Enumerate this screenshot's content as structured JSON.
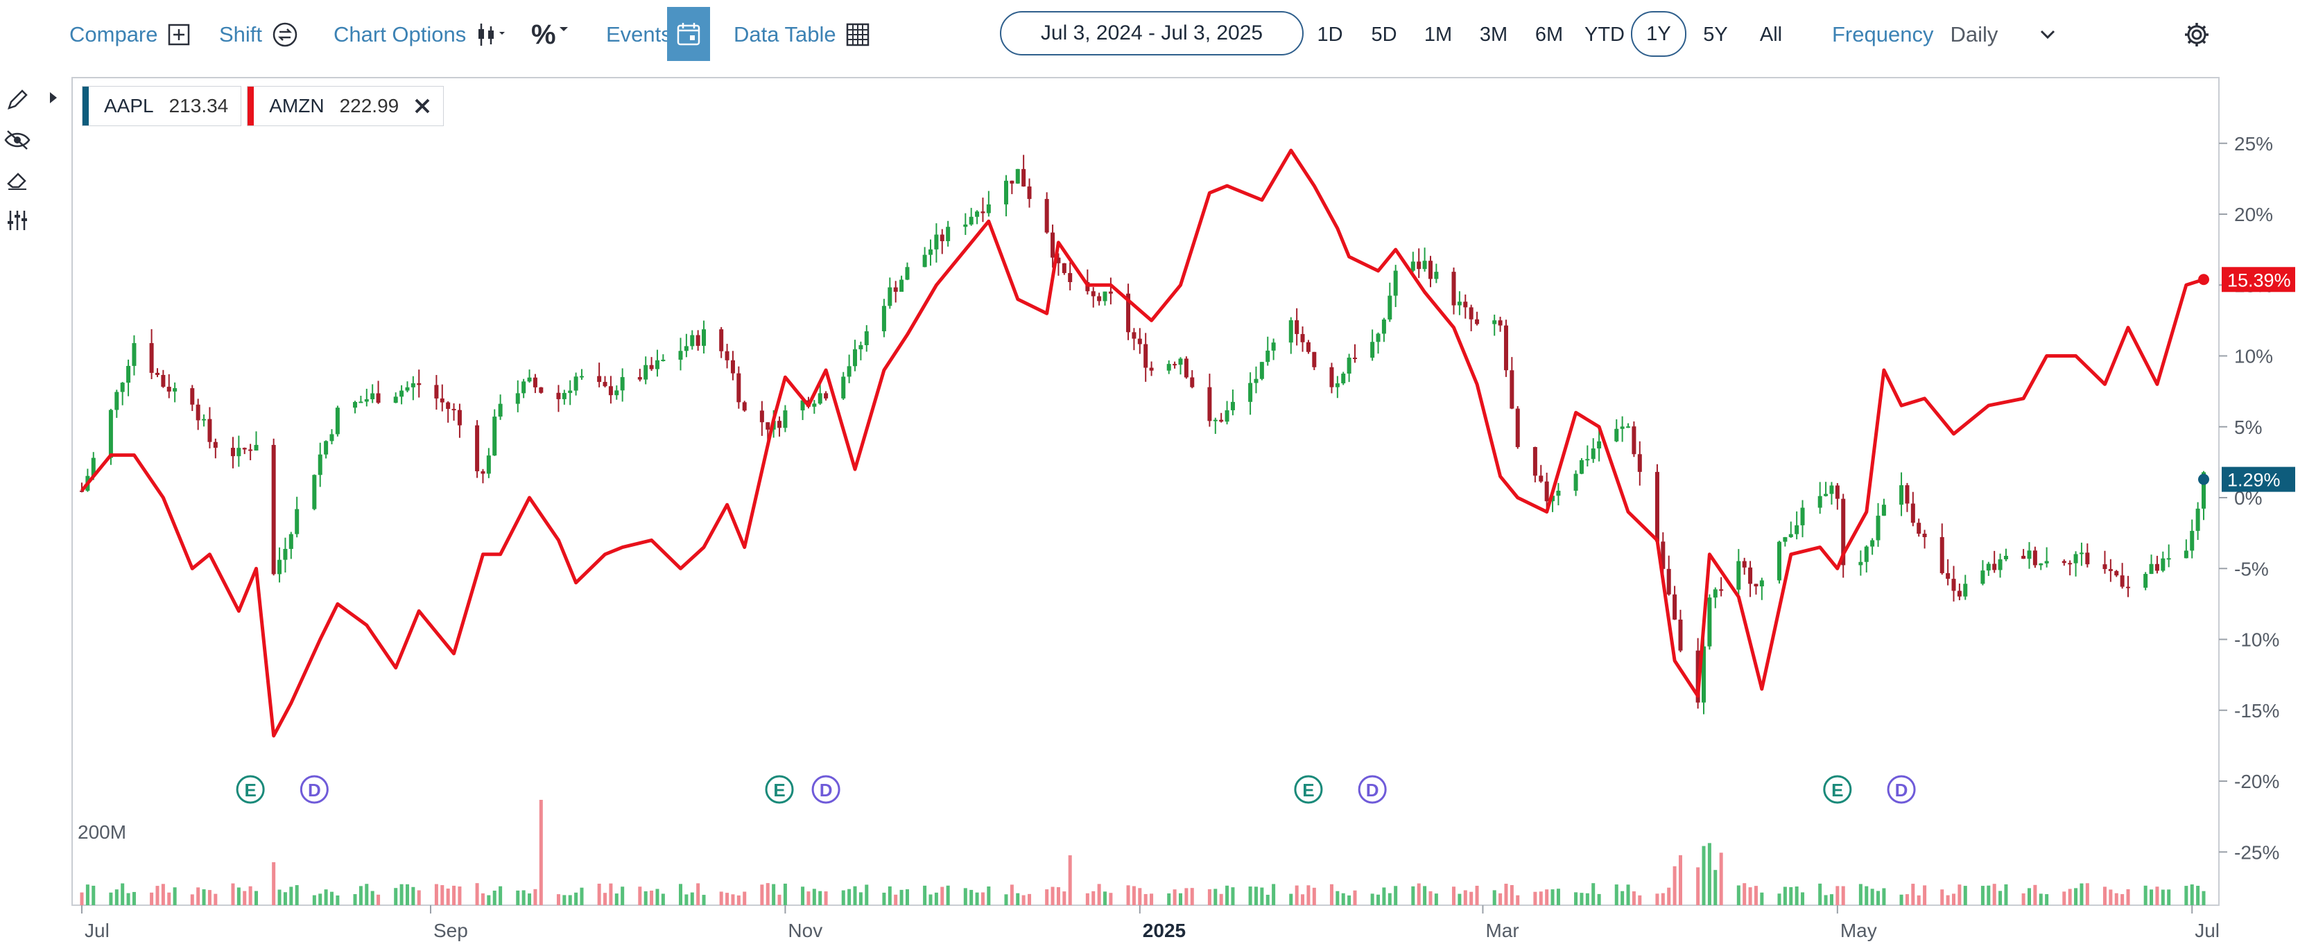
{
  "toolbar": {
    "compare": "Compare",
    "shift": "Shift",
    "chart_options": "Chart Options",
    "percent": "%",
    "events": "Events",
    "data_table": "Data Table",
    "date_range": "Jul 3, 2024 - Jul 3, 2025",
    "periods": [
      "1D",
      "5D",
      "1M",
      "3M",
      "6M",
      "YTD",
      "1Y",
      "5Y",
      "All"
    ],
    "active_period": "1Y",
    "frequency_label": "Frequency",
    "frequency_value": "Daily"
  },
  "legend": [
    {
      "symbol": "AAPL",
      "value": "213.34",
      "color": "#0e5c7c"
    },
    {
      "symbol": "AMZN",
      "value": "222.99",
      "color": "#e8111b"
    }
  ],
  "colors": {
    "aapl": "#0e5c7c",
    "amzn": "#e8111b",
    "up": "#22a045",
    "down": "#a31d2a"
  },
  "chart_data": {
    "type": "line",
    "title": "",
    "xlabel": "",
    "ylabel": "",
    "ylim": [
      -29,
      29
    ],
    "yticks": [
      "25%",
      "20%",
      "15%",
      "10%",
      "5%",
      "0%",
      "-5%",
      "-10%",
      "-15%",
      "-20%",
      "-25%"
    ],
    "xticks": [
      "Jul",
      "Sep",
      "Nov",
      "2025",
      "Mar",
      "May",
      "Jul"
    ],
    "series": [
      {
        "name": "AMZN",
        "display": "line",
        "end_label": "15.39%",
        "x": [
          "2024-07-03",
          "2024-07-08",
          "2024-07-12",
          "2024-07-17",
          "2024-07-22",
          "2024-07-25",
          "2024-07-30",
          "2024-08-02",
          "2024-08-05",
          "2024-08-08",
          "2024-08-13",
          "2024-08-16",
          "2024-08-21",
          "2024-08-26",
          "2024-08-30",
          "2024-09-05",
          "2024-09-10",
          "2024-09-13",
          "2024-09-18",
          "2024-09-23",
          "2024-09-26",
          "2024-10-01",
          "2024-10-04",
          "2024-10-09",
          "2024-10-14",
          "2024-10-18",
          "2024-10-22",
          "2024-10-25",
          "2024-10-30",
          "2024-11-01",
          "2024-11-05",
          "2024-11-08",
          "2024-11-13",
          "2024-11-18",
          "2024-11-22",
          "2024-11-27",
          "2024-12-03",
          "2024-12-06",
          "2024-12-11",
          "2024-12-16",
          "2024-12-18",
          "2024-12-23",
          "2024-12-27",
          "2025-01-03",
          "2025-01-08",
          "2025-01-13",
          "2025-01-16",
          "2025-01-22",
          "2025-01-27",
          "2025-01-31",
          "2025-02-04",
          "2025-02-06",
          "2025-02-11",
          "2025-02-14",
          "2025-02-19",
          "2025-02-24",
          "2025-02-28",
          "2025-03-04",
          "2025-03-07",
          "2025-03-12",
          "2025-03-17",
          "2025-03-21",
          "2025-03-26",
          "2025-03-31",
          "2025-04-03",
          "2025-04-07",
          "2025-04-09",
          "2025-04-14",
          "2025-04-18",
          "2025-04-23",
          "2025-04-28",
          "2025-05-01",
          "2025-05-02",
          "2025-05-06",
          "2025-05-09",
          "2025-05-12",
          "2025-05-16",
          "2025-05-21",
          "2025-05-27",
          "2025-06-02",
          "2025-06-06",
          "2025-06-11",
          "2025-06-16",
          "2025-06-20",
          "2025-06-25",
          "2025-06-30",
          "2025-07-03"
        ],
        "values": [
          0.5,
          3,
          3,
          0,
          -5,
          -4,
          -8,
          -5,
          -16.8,
          -14.5,
          -10,
          -7.5,
          -9,
          -12,
          -8,
          -11,
          -4,
          -4,
          0,
          -3,
          -6,
          -4,
          -3.5,
          -3,
          -5,
          -3.5,
          -0.5,
          -3.5,
          5.5,
          8.5,
          6.5,
          9,
          2,
          9,
          11.5,
          15,
          18,
          19.5,
          14,
          13,
          18,
          15,
          15,
          12.5,
          15,
          21.5,
          22,
          21,
          24.5,
          22,
          19,
          17,
          16,
          17.5,
          14.5,
          12,
          8,
          1.5,
          0,
          -1,
          6,
          5,
          -1,
          -3,
          -11.5,
          -14,
          -4,
          -7,
          -13.5,
          -4,
          -3.5,
          -5,
          -4,
          -1,
          9,
          6.5,
          7,
          4.5,
          6.5,
          7,
          10,
          10,
          8,
          12,
          8,
          15,
          15.39
        ]
      },
      {
        "name": "AAPL",
        "display": "candlestick",
        "end_label": "1.29%",
        "x": [
          "2024-07-03",
          "2024-07-08",
          "2024-07-12",
          "2024-07-17",
          "2024-07-22",
          "2024-07-25",
          "2024-07-30",
          "2024-08-02",
          "2024-08-05",
          "2024-08-08",
          "2024-08-13",
          "2024-08-16",
          "2024-08-21",
          "2024-08-26",
          "2024-08-30",
          "2024-09-05",
          "2024-09-10",
          "2024-09-13",
          "2024-09-18",
          "2024-09-23",
          "2024-09-26",
          "2024-10-01",
          "2024-10-04",
          "2024-10-09",
          "2024-10-14",
          "2024-10-18",
          "2024-10-22",
          "2024-10-25",
          "2024-10-30",
          "2024-11-01",
          "2024-11-05",
          "2024-11-08",
          "2024-11-13",
          "2024-11-18",
          "2024-11-22",
          "2024-11-27",
          "2024-12-03",
          "2024-12-06",
          "2024-12-11",
          "2024-12-16",
          "2024-12-18",
          "2024-12-23",
          "2024-12-27",
          "2025-01-03",
          "2025-01-08",
          "2025-01-13",
          "2025-01-16",
          "2025-01-22",
          "2025-01-27",
          "2025-01-31",
          "2025-02-04",
          "2025-02-06",
          "2025-02-11",
          "2025-02-14",
          "2025-02-19",
          "2025-02-24",
          "2025-02-28",
          "2025-03-04",
          "2025-03-07",
          "2025-03-12",
          "2025-03-17",
          "2025-03-21",
          "2025-03-26",
          "2025-03-31",
          "2025-04-03",
          "2025-04-07",
          "2025-04-09",
          "2025-04-14",
          "2025-04-18",
          "2025-04-23",
          "2025-04-28",
          "2025-05-01",
          "2025-05-02",
          "2025-05-06",
          "2025-05-09",
          "2025-05-12",
          "2025-05-16",
          "2025-05-21",
          "2025-05-27",
          "2025-06-02",
          "2025-06-06",
          "2025-06-11",
          "2025-06-16",
          "2025-06-20",
          "2025-06-25",
          "2025-06-30",
          "2025-07-03"
        ],
        "values": [
          0.5,
          6,
          11,
          8,
          7,
          4,
          3,
          4,
          -5.5,
          -2,
          3,
          6,
          7,
          7.5,
          8,
          6,
          1.5,
          7,
          8,
          7,
          8.5,
          7.5,
          8,
          9,
          10.5,
          11.5,
          10,
          6,
          5,
          6,
          7,
          7.5,
          10,
          14,
          16,
          18,
          20,
          21,
          23,
          19,
          16,
          14,
          14,
          9,
          10,
          5,
          6,
          9,
          13,
          9,
          8,
          10,
          11,
          16,
          16.5,
          14,
          12,
          12,
          3,
          0,
          2,
          4,
          5,
          -3,
          -9,
          -15,
          -7,
          -5,
          -6,
          -2,
          0,
          0.5,
          -5,
          -4,
          0,
          0.5,
          -3,
          -7,
          -5,
          -4,
          -4.5,
          -4,
          -5,
          -6,
          -5,
          -4,
          1.29
        ]
      }
    ],
    "volume": {
      "max_label": "200M"
    },
    "events": [
      {
        "label": "E",
        "x": "2024-08-01"
      },
      {
        "label": "D",
        "x": "2024-08-12"
      },
      {
        "label": "E",
        "x": "2024-10-31"
      },
      {
        "label": "D",
        "x": "2024-11-08"
      },
      {
        "label": "E",
        "x": "2025-01-30"
      },
      {
        "label": "D",
        "x": "2025-02-10"
      },
      {
        "label": "E",
        "x": "2025-05-01"
      },
      {
        "label": "D",
        "x": "2025-05-12"
      }
    ],
    "grid": false,
    "legend_position": "top-left"
  }
}
